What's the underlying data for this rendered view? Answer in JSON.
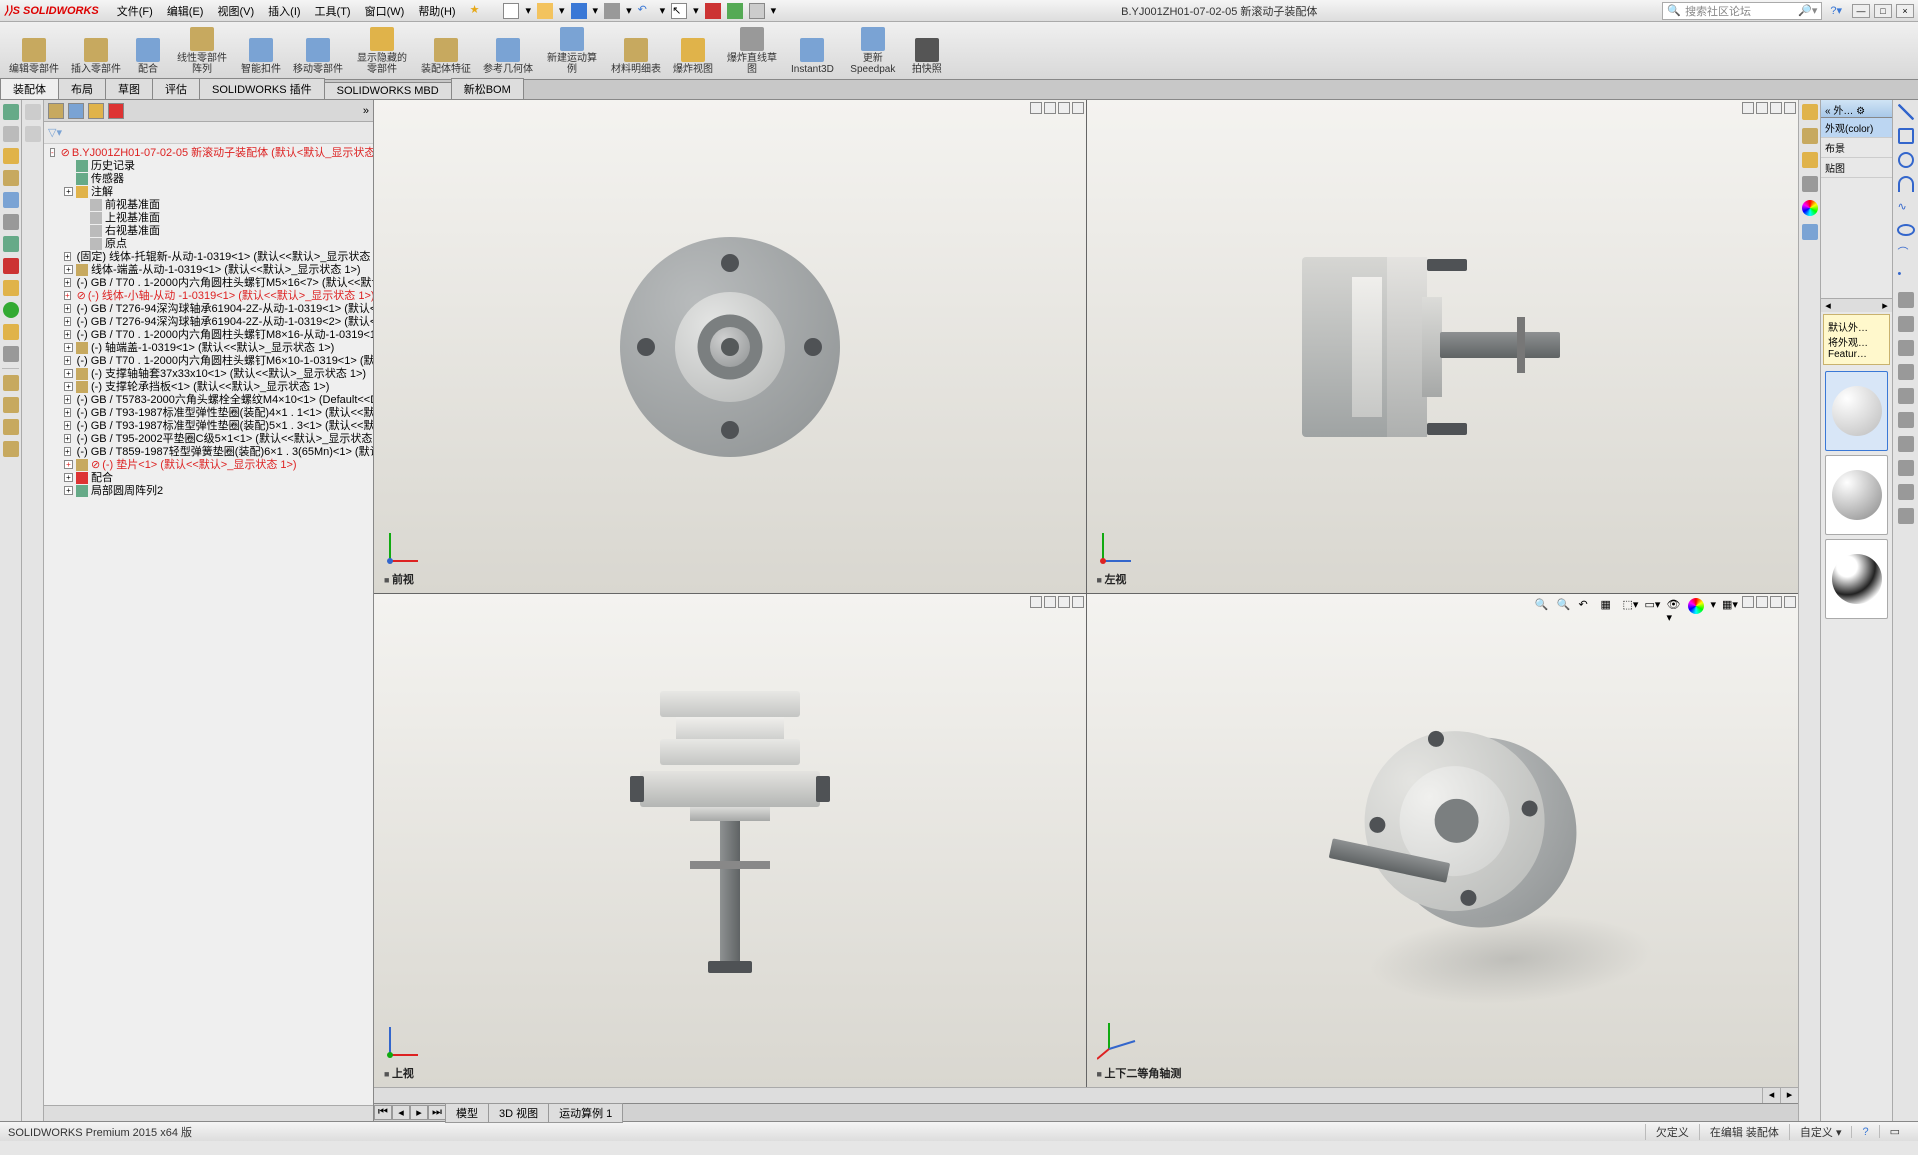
{
  "app": {
    "name": "SOLIDWORKS",
    "doc_title": "B.YJ001ZH01-07-02-05 新滚动子装配体",
    "search_placeholder": "搜索社区论坛"
  },
  "menus": [
    "文件(F)",
    "编辑(E)",
    "视图(V)",
    "插入(I)",
    "工具(T)",
    "窗口(W)",
    "帮助(H)"
  ],
  "ribbon": [
    {
      "label": "编辑零部件",
      "color": "#c7a95f"
    },
    {
      "label": "插入零部件",
      "color": "#c7a95f"
    },
    {
      "label": "配合",
      "color": "#7aa3d4"
    },
    {
      "label": "线性零部件阵列",
      "color": "#c7a95f"
    },
    {
      "label": "智能扣件",
      "color": "#7aa3d4"
    },
    {
      "label": "移动零部件",
      "color": "#7aa3d4"
    },
    {
      "label": "显示隐藏的零部件",
      "color": "#e0b34a"
    },
    {
      "label": "装配体特征",
      "color": "#c7a95f"
    },
    {
      "label": "参考几何体",
      "color": "#7aa3d4"
    },
    {
      "label": "新建运动算例",
      "color": "#7aa3d4"
    },
    {
      "label": "材料明细表",
      "color": "#c7a95f"
    },
    {
      "label": "爆炸视图",
      "color": "#e0b34a"
    },
    {
      "label": "爆炸直线草图",
      "color": "#999999"
    },
    {
      "label": "Instant3D",
      "color": "#7aa3d4"
    },
    {
      "label": "更新Speedpak",
      "color": "#7aa3d4"
    },
    {
      "label": "拍快照",
      "color": "#555555"
    }
  ],
  "tabs": [
    "装配体",
    "布局",
    "草图",
    "评估",
    "SOLIDWORKS 插件",
    "SOLIDWORKS MBD",
    "新松BOM"
  ],
  "tree": {
    "root": "B.YJ001ZH01-07-02-05 新滚动子装配体  (默认<默认_显示状态-1>)",
    "top": [
      {
        "t": "历史记录",
        "i": "#6a8"
      },
      {
        "t": "传感器",
        "i": "#6a8"
      },
      {
        "t": "注解",
        "i": "#e0b34a",
        "exp": "+"
      },
      {
        "t": "前视基准面",
        "i": "#bbb",
        "ind": 2
      },
      {
        "t": "上视基准面",
        "i": "#bbb",
        "ind": 2
      },
      {
        "t": "右视基准面",
        "i": "#bbb",
        "ind": 2
      },
      {
        "t": "原点",
        "i": "#bbb",
        "ind": 2
      }
    ],
    "parts": [
      {
        "t": "(固定) 线体-托辊新-从动-1-0319<1> (默认<<默认>_显示状态 1>)"
      },
      {
        "t": "线体-端盖-从动-1-0319<1> (默认<<默认>_显示状态 1>)"
      },
      {
        "t": "(-) GB / T70 . 1-2000内六角圆柱头螺钉M5×16<7> (默认<<默认>_显示"
      },
      {
        "t": "(-) 线体-小轴-从动 -1-0319<1> (默认<<默认>_显示状态 1>)",
        "red": true
      },
      {
        "t": "(-) GB / T276-94深沟球轴承61904-2Z-从动-1-0319<1> (默认<<默认"
      },
      {
        "t": "(-) GB / T276-94深沟球轴承61904-2Z-从动-1-0319<2> (默认<<默认"
      },
      {
        "t": "(-) GB / T70 . 1-2000内六角圆柱头螺钉M8×16-从动-1-0319<1> (默"
      },
      {
        "t": "(-) 轴端盖-1-0319<1> (默认<<默认>_显示状态 1>)"
      },
      {
        "t": "(-) GB / T70 . 1-2000内六角圆柱头螺钉M6×10-1-0319<1> (默认<<"
      },
      {
        "t": "(-) 支撑轴轴套37x33x10<1> (默认<<默认>_显示状态 1>)"
      },
      {
        "t": "(-) 支撑轮承挡板<1> (默认<<默认>_显示状态 1>)"
      },
      {
        "t": "(-) GB / T5783-2000六角头螺栓全螺纹M4×10<1> (Default<<Default"
      },
      {
        "t": "(-) GB / T93-1987标准型弹性垫圈(装配)4×1 . 1<1> (默认<<默认>_显示"
      },
      {
        "t": "(-) GB / T93-1987标准型弹性垫圈(装配)5×1 . 3<1> (默认<<默认>_显示"
      },
      {
        "t": "(-) GB / T95-2002平垫圈C级5×1<1> (默认<<默认>_显示状态 1>)"
      },
      {
        "t": "(-) GB / T859-1987轻型弹簧垫圈(装配)6×1 . 3(65Mn)<1> (默认<<默认"
      },
      {
        "t": "(-) 垫片<1> (默认<<默认>_显示状态 1>)",
        "red": true
      }
    ],
    "bottom": [
      {
        "t": "配合",
        "i": "#d33",
        "exp": "+"
      },
      {
        "t": "局部圆周阵列2",
        "i": "#6a8",
        "exp": "+"
      }
    ]
  },
  "viewports": {
    "tl": "前视",
    "tr": "左视",
    "bl": "上视",
    "br": "上下二等角轴测"
  },
  "task_pane": {
    "header": "外…",
    "tab1": "外观(color)",
    "tab2": "布景",
    "tab3": "贴图",
    "hint1": "默认外…",
    "hint2": "将外观…",
    "hint3": "Featur…"
  },
  "bottom_tabs": [
    "模型",
    "3D 视图",
    "运动算例 1"
  ],
  "status": {
    "product": "SOLIDWORKS Premium 2015 x64 版",
    "s1": "欠定义",
    "s2": "在编辑 装配体",
    "s3": "自定义"
  },
  "colors": {
    "accent": "#d00",
    "tree_red": "#d22",
    "viewport_bg_top": "#f4f3f0",
    "viewport_bg_bot": "#d9d7d0",
    "part_gray": "#9a9e9f",
    "part_light": "#e8e6e2",
    "part_dark": "#4f5255"
  }
}
